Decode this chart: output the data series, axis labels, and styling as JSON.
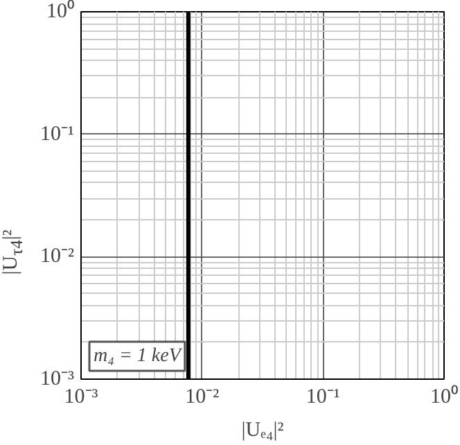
{
  "chart_data": {
    "type": "line",
    "log": "xy",
    "xlabel": "|Uₑ₄|²",
    "ylabel": "|U$_{τ4}$|²",
    "xlim": [
      0.001,
      1
    ],
    "ylim": [
      0.001,
      1
    ],
    "xticks": [
      {
        "value": 0.001,
        "label": "10⁻³"
      },
      {
        "value": 0.01,
        "label": "10⁻²"
      },
      {
        "value": 0.1,
        "label": "10⁻¹"
      },
      {
        "value": 1,
        "label": "10⁰"
      }
    ],
    "yticks": [
      {
        "value": 0.001,
        "label": "10⁻³"
      },
      {
        "value": 0.01,
        "label": "10⁻²"
      },
      {
        "value": 0.1,
        "label": "10⁻¹"
      },
      {
        "value": 1,
        "label": "10⁰"
      }
    ],
    "grid": true,
    "series": [
      {
        "color": "#000000",
        "x": [
          0.0077,
          0.0077
        ],
        "values": [
          0.001,
          1
        ]
      }
    ],
    "annotations": [
      "m₄ = 1 keV"
    ]
  }
}
